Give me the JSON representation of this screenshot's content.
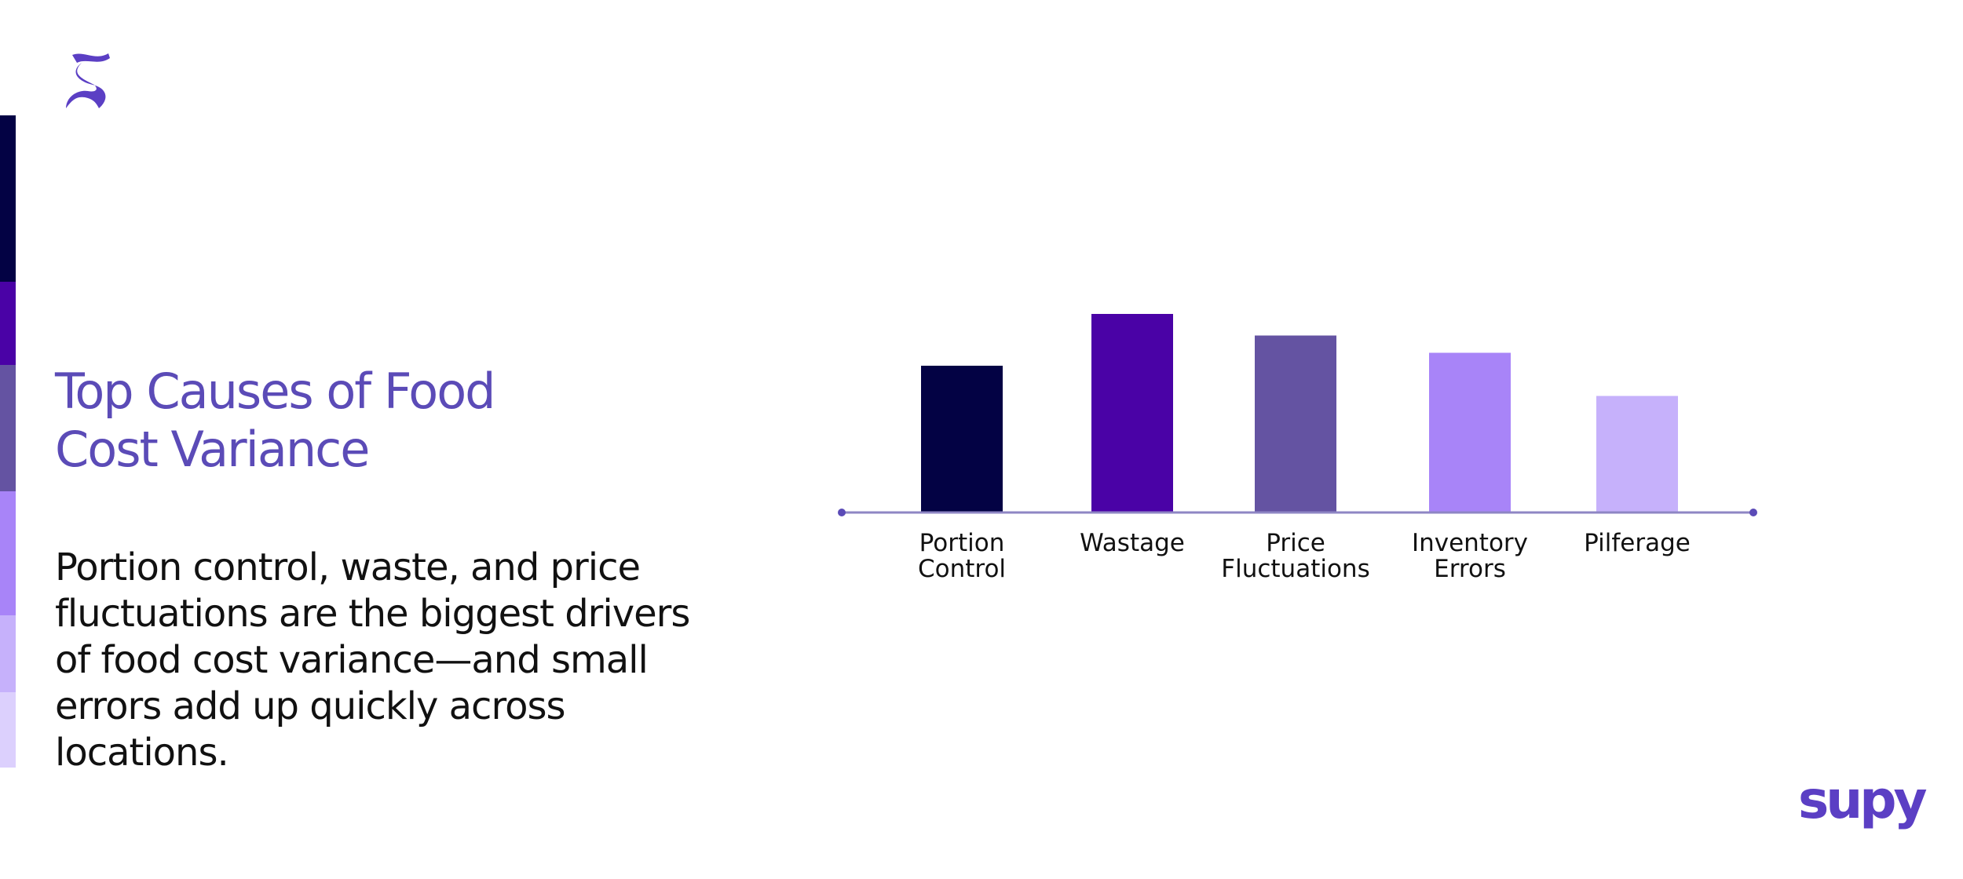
{
  "slide": {
    "title_line1": "Top Causes of Food",
    "title_line2": "Cost Variance",
    "body": "Portion control, waste, and price fluctuations are the biggest drivers of food cost variance—and small errors add up quickly across locations.",
    "brand": "supy",
    "logo_icon": "stylized-s-logo-icon"
  },
  "colors": {
    "accent": "#5b4bb7",
    "axis": "#8e86c4",
    "strip": [
      "#030244",
      "#4a02a6",
      "#6453a2",
      "#a884f8",
      "#c6b1fb",
      "#dcd0fd"
    ]
  },
  "chart_data": {
    "type": "bar",
    "title": "",
    "xlabel": "",
    "ylabel": "",
    "categories": [
      [
        "Portion",
        "Control"
      ],
      [
        "Wastage"
      ],
      [
        "Price",
        "Fluctuations"
      ],
      [
        "Inventory",
        "Errors"
      ],
      [
        "Pilferage"
      ]
    ],
    "values": [
      68,
      92,
      82,
      74,
      54
    ],
    "ylim": [
      0,
      100
    ],
    "bar_colors": [
      "#030244",
      "#4a02a6",
      "#6453a2",
      "#a884f8",
      "#c6b1fb"
    ],
    "grid": false,
    "legend": "none",
    "y_axis_visible": false
  }
}
